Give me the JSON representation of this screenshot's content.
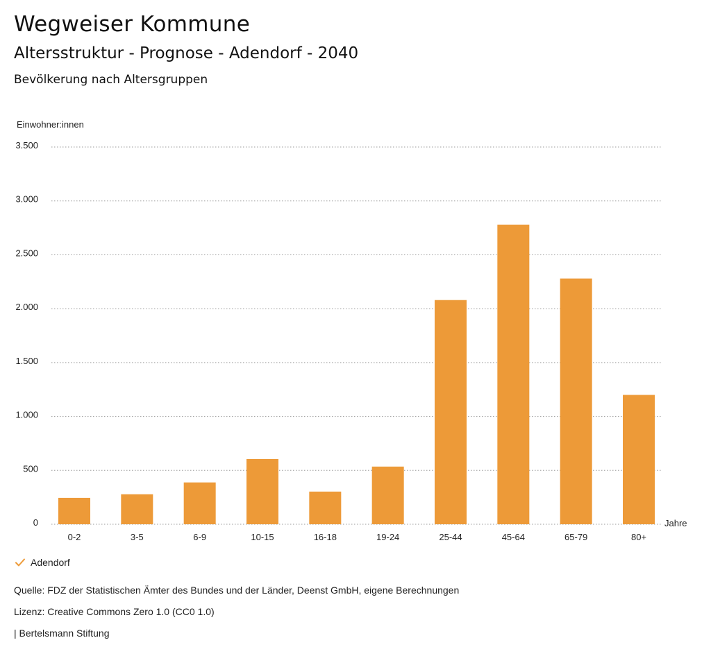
{
  "header": {
    "title": "Wegweiser Kommune",
    "subtitle": "Altersstruktur - Prognose - Adendorf - 2040",
    "subheading": "Bevölkerung nach Altersgruppen"
  },
  "chart_data": {
    "type": "bar",
    "ylabel": "Einwohner:innen",
    "xlabel": "Jahre",
    "categories": [
      "0-2",
      "3-5",
      "6-9",
      "10-15",
      "16-18",
      "19-24",
      "25-44",
      "45-64",
      "65-79",
      "80+"
    ],
    "series": [
      {
        "name": "Adendorf",
        "color": "#ed9a38",
        "values": [
          245,
          278,
          388,
          605,
          303,
          535,
          2080,
          2780,
          2280,
          1200
        ]
      }
    ],
    "ylim": [
      0,
      3500
    ],
    "yticks": [
      0,
      500,
      1000,
      1500,
      2000,
      2500,
      3000,
      3500
    ],
    "ytick_labels": [
      "0",
      "500",
      "1.000",
      "1.500",
      "2.000",
      "2.500",
      "3.000",
      "3.500"
    ],
    "grid": true,
    "legend_position": "bottom-left"
  },
  "footer": {
    "source": "Quelle: FDZ der Statistischen Ämter des Bundes und der Länder, Deenst GmbH, eigene Berechnungen",
    "license": "Lizenz: Creative Commons Zero 1.0 (CC0 1.0)",
    "publisher": "| Bertelsmann Stiftung"
  },
  "legend": {
    "label": "Adendorf",
    "check_color": "#ed9a38",
    "icon": "checkmark-icon"
  }
}
